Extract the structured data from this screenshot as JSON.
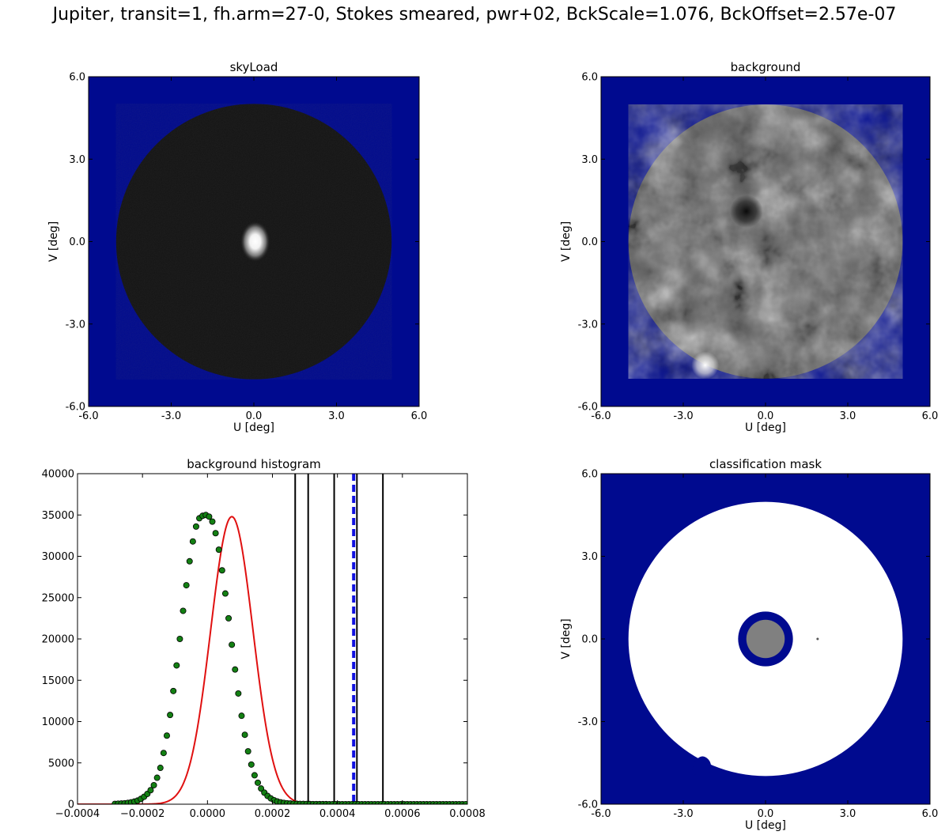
{
  "figure": {
    "title": "Jupiter, transit=1, fh.arm=27-0, Stokes smeared, pwr+02, BckScale=1.076, BckOffset=2.57e-07"
  },
  "colors": {
    "mask_blue": "#000a8f",
    "fit_line": "#e01010",
    "data_point": "#138013",
    "threshold_line": "#000000",
    "offset_line": "#1010e0"
  },
  "chart_data": [
    {
      "type": "heatmap",
      "title": "skyLoad",
      "xlabel": "U [deg]",
      "ylabel": "V [deg]",
      "xlim": [
        -6.0,
        6.0
      ],
      "ylim": [
        -6.0,
        6.0
      ],
      "xticks": [
        "-6.0",
        "-3.0",
        "0.0",
        "3.0",
        "6.0"
      ],
      "yticks": [
        "6.0",
        "3.0",
        "0.0",
        "-3.0",
        "-6.0"
      ],
      "disk_radius_deg": 5.0,
      "features": [
        {
          "kind": "bright-source",
          "u": 0.05,
          "v": 0.0
        }
      ]
    },
    {
      "type": "heatmap",
      "title": "background",
      "xlabel": "U [deg]",
      "ylabel": "V [deg]",
      "xlim": [
        -6.0,
        6.0
      ],
      "ylim": [
        -6.0,
        6.0
      ],
      "xticks": [
        "-6.0",
        "-3.0",
        "0.0",
        "3.0",
        "6.0"
      ],
      "yticks": [
        "6.0",
        "3.0",
        "0.0",
        "-3.0",
        "-6.0"
      ],
      "disk_radius_deg": 5.0,
      "features": [
        {
          "kind": "dark-spot",
          "u": -0.7,
          "v": 1.1
        },
        {
          "kind": "bright-spot",
          "u": -2.2,
          "v": -4.5
        }
      ]
    },
    {
      "type": "scatter",
      "title": "background histogram",
      "xlabel": "",
      "ylabel": "",
      "xlim": [
        -0.0004,
        0.0008
      ],
      "ylim": [
        0,
        40000
      ],
      "xticks": [
        "−0.0004",
        "−0.0002",
        "0.0000",
        "0.0002",
        "0.0004",
        "0.0006",
        "0.0008"
      ],
      "yticks": [
        "40000",
        "35000",
        "30000",
        "25000",
        "20000",
        "15000",
        "10000",
        "5000",
        "0"
      ],
      "fit": {
        "type": "gaussian",
        "amplitude": 34800,
        "mean": 7.5e-05,
        "sigma": 6.5e-05
      },
      "threshold_lines": [
        0.00027,
        0.00031,
        0.00039,
        0.00046,
        0.00054
      ],
      "offset_line": 0.00045,
      "points": [
        [
          -0.000285,
          40
        ],
        [
          -0.000275,
          60
        ],
        [
          -0.000265,
          80
        ],
        [
          -0.000255,
          110
        ],
        [
          -0.000245,
          160
        ],
        [
          -0.000235,
          230
        ],
        [
          -0.000225,
          320
        ],
        [
          -0.000215,
          440
        ],
        [
          -0.000205,
          640
        ],
        [
          -0.000195,
          900
        ],
        [
          -0.000185,
          1250
        ],
        [
          -0.000175,
          1700
        ],
        [
          -0.000165,
          2300
        ],
        [
          -0.000155,
          3200
        ],
        [
          -0.000145,
          4400
        ],
        [
          -0.000135,
          6200
        ],
        [
          -0.000125,
          8300
        ],
        [
          -0.000115,
          10800
        ],
        [
          -0.000105,
          13700
        ],
        [
          -9.5e-05,
          16800
        ],
        [
          -8.5e-05,
          20000
        ],
        [
          -7.5e-05,
          23400
        ],
        [
          -6.5e-05,
          26500
        ],
        [
          -5.5e-05,
          29400
        ],
        [
          -4.5e-05,
          31800
        ],
        [
          -3.5e-05,
          33600
        ],
        [
          -2.5e-05,
          34600
        ],
        [
          -1.5e-05,
          34900
        ],
        [
          -5e-06,
          35000
        ],
        [
          5e-06,
          34800
        ],
        [
          1.5e-05,
          34200
        ],
        [
          2.5e-05,
          32800
        ],
        [
          3.5e-05,
          30800
        ],
        [
          4.5e-05,
          28300
        ],
        [
          5.5e-05,
          25500
        ],
        [
          6.5e-05,
          22500
        ],
        [
          7.5e-05,
          19300
        ],
        [
          8.5e-05,
          16300
        ],
        [
          9.5e-05,
          13400
        ],
        [
          0.000105,
          10700
        ],
        [
          0.000115,
          8400
        ],
        [
          0.000125,
          6400
        ],
        [
          0.000135,
          4800
        ],
        [
          0.000145,
          3500
        ],
        [
          0.000155,
          2600
        ],
        [
          0.000165,
          1900
        ],
        [
          0.000175,
          1400
        ],
        [
          0.000185,
          1000
        ],
        [
          0.000195,
          700
        ],
        [
          0.000205,
          480
        ],
        [
          0.000215,
          330
        ],
        [
          0.000225,
          230
        ],
        [
          0.000235,
          160
        ],
        [
          0.000245,
          110
        ],
        [
          0.000255,
          80
        ],
        [
          0.000265,
          60
        ],
        [
          0.000275,
          45
        ],
        [
          0.000285,
          35
        ],
        [
          0.000295,
          30
        ],
        [
          0.000305,
          25
        ],
        [
          0.000315,
          20
        ],
        [
          0.000325,
          15
        ],
        [
          0.000335,
          12
        ],
        [
          0.000345,
          10
        ],
        [
          0.000355,
          8
        ],
        [
          0.000365,
          6
        ],
        [
          0.000375,
          5
        ],
        [
          0.000385,
          4
        ],
        [
          0.000395,
          3
        ],
        [
          0.000405,
          3
        ],
        [
          0.000415,
          2
        ],
        [
          0.000425,
          2
        ],
        [
          0.000435,
          2
        ],
        [
          0.000445,
          1
        ],
        [
          0.000455,
          1
        ],
        [
          0.000465,
          1
        ],
        [
          0.000475,
          1
        ],
        [
          0.000485,
          1
        ],
        [
          0.000495,
          0
        ],
        [
          0.000505,
          0
        ],
        [
          0.000515,
          0
        ],
        [
          0.000525,
          0
        ],
        [
          0.000535,
          0
        ],
        [
          0.000545,
          0
        ],
        [
          0.000555,
          0
        ],
        [
          0.000565,
          0
        ],
        [
          0.000575,
          0
        ],
        [
          0.000585,
          0
        ],
        [
          0.000595,
          0
        ],
        [
          0.000605,
          0
        ],
        [
          0.000615,
          0
        ],
        [
          0.000625,
          0
        ],
        [
          0.000635,
          0
        ],
        [
          0.000645,
          0
        ],
        [
          0.000655,
          0
        ],
        [
          0.000665,
          0
        ],
        [
          0.000675,
          0
        ],
        [
          0.000685,
          0
        ],
        [
          0.000695,
          0
        ],
        [
          0.000705,
          0
        ],
        [
          0.000715,
          0
        ],
        [
          0.000725,
          0
        ],
        [
          0.000735,
          0
        ],
        [
          0.000745,
          0
        ],
        [
          0.000755,
          0
        ],
        [
          0.000765,
          0
        ],
        [
          0.000775,
          0
        ],
        [
          0.000785,
          0
        ],
        [
          0.000795,
          0
        ]
      ]
    },
    {
      "type": "heatmap",
      "title": "classification mask",
      "xlabel": "U [deg]",
      "ylabel": "V [deg]",
      "xlim": [
        -6.0,
        6.0
      ],
      "ylim": [
        -6.0,
        6.0
      ],
      "xticks": [
        "-6.0",
        "-3.0",
        "0.0",
        "3.0",
        "6.0"
      ],
      "yticks": [
        "6.0",
        "3.0",
        "0.0",
        "-3.0",
        "-6.0"
      ],
      "disk_radius_deg": 5.0,
      "inner_ring_radius_deg": 1.0,
      "core_radius_deg": 0.7
    }
  ]
}
